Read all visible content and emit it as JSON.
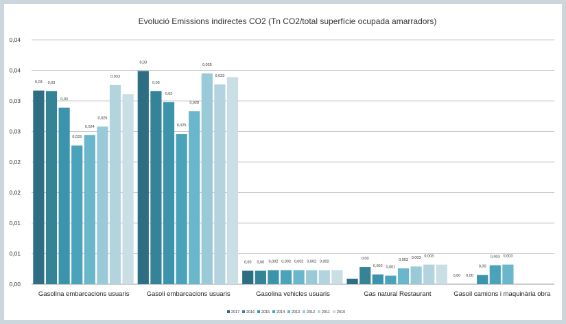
{
  "chart_data": {
    "type": "bar",
    "title": "Evolució Emissions indirectes CO2 (Tn CO2/total superfície ocupada amarradors)",
    "xlabel": "",
    "ylabel": "",
    "ylim": [
      0,
      0.04
    ],
    "y_tick_values": [
      0,
      0.005,
      0.01,
      0.015,
      0.02,
      0.025,
      0.03,
      0.035,
      0.04
    ],
    "y_tick_labels": [
      "0,00",
      "0,01",
      "0,01",
      "0,02",
      "0,02",
      "0,03",
      "0,03",
      "0,04",
      "0,04"
    ],
    "grid": true,
    "legend_position": "bottom",
    "categories": [
      "Gasolina embarcacions usuaris",
      "Gasoli embarcacions usuaris",
      "Gasolina vehicles usuaris",
      "Gas natural Restaurant",
      "Gasoil camions i maquinària obra"
    ],
    "series": [
      {
        "name": "2017",
        "color": "#2d6e84",
        "values": [
          0.0317,
          0.0349,
          0.0022,
          0.0009,
          null
        ],
        "labels": [
          "0,03",
          "0,03",
          "0,00",
          "",
          "0,00"
        ]
      },
      {
        "name": "2016",
        "color": "#348397",
        "values": [
          0.0316,
          0.0316,
          0.0022,
          0.0028,
          null
        ],
        "labels": [
          "0,03",
          "0,03",
          "0,00",
          "0,00",
          "0,00"
        ]
      },
      {
        "name": "2015",
        "color": "#3c93ac",
        "values": [
          0.0289,
          0.0298,
          0.0023,
          0.0016,
          0.0015
        ],
        "labels": [
          "0,03",
          "0,03",
          "0,002",
          "0,002",
          "0,00"
        ]
      },
      {
        "name": "2014",
        "color": "#4aa3bb",
        "values": [
          0.0227,
          0.0246,
          0.0023,
          0.0014,
          0.0031
        ],
        "labels": [
          "0,023",
          "0,025",
          "0,002",
          "0,001",
          "0,003"
        ]
      },
      {
        "name": "2013",
        "color": "#6ab6cb",
        "values": [
          0.0244,
          0.0283,
          0.0023,
          0.0026,
          0.0032
        ],
        "labels": [
          "0,024",
          "0,028",
          "0,002",
          "0,003",
          "0,003"
        ]
      },
      {
        "name": "2012",
        "color": "#9ac9d8",
        "values": [
          0.0258,
          0.0345,
          0.0023,
          0.0029,
          null
        ],
        "labels": [
          "0,026",
          "0,035",
          "0,002",
          "0,003",
          ""
        ]
      },
      {
        "name": "2011",
        "color": "#b3d4df",
        "values": [
          0.0326,
          0.0327,
          0.0023,
          0.0032,
          null
        ],
        "labels": [
          "0,033",
          "0,033",
          "0,002",
          "0,003",
          ""
        ]
      },
      {
        "name": "2010",
        "color": "#cadee6",
        "values": [
          0.0311,
          0.0339,
          0.0023,
          0.0032,
          null
        ],
        "labels": [
          "",
          "",
          "",
          "",
          ""
        ]
      }
    ]
  }
}
